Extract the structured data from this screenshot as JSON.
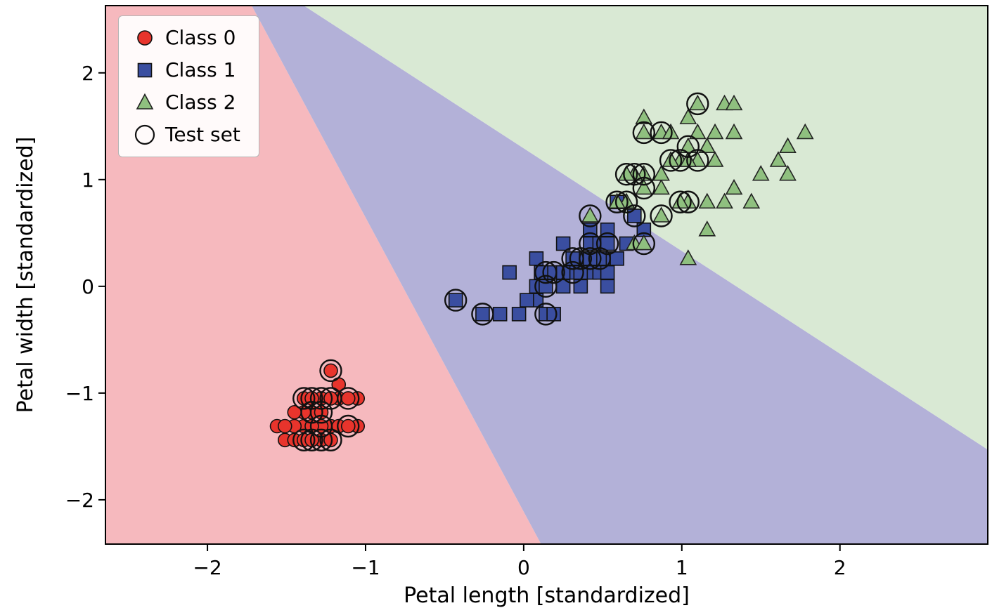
{
  "chart_data": {
    "type": "scatter",
    "title": "",
    "xlabel": "Petal length [standardized]",
    "ylabel": "Petal width [standardized]",
    "xlim": [
      -2.645,
      2.935
    ],
    "ylim": [
      -2.415,
      2.63
    ],
    "xticks": [
      -2,
      -1,
      0,
      1,
      2
    ],
    "yticks": [
      -2,
      -1,
      0,
      1,
      2
    ],
    "grid": false,
    "legend": {
      "position": "upper left",
      "items": [
        {
          "label": "Class 0",
          "marker": "circle",
          "fill": "#e8342c",
          "edge": "#111111"
        },
        {
          "label": "Class 1",
          "marker": "square",
          "fill": "#3a4ea0",
          "edge": "#111111"
        },
        {
          "label": "Class 2",
          "marker": "triangle",
          "fill": "#8fc07f",
          "edge": "#222222"
        },
        {
          "label": "Test set",
          "marker": "open-circle",
          "fill": "none",
          "edge": "#111111"
        }
      ]
    },
    "regions": [
      {
        "name": "class-0-region",
        "color": "#f6b9be",
        "points": [
          [
            -2.645,
            2.63
          ],
          [
            -1.72,
            2.63
          ],
          [
            0.11,
            -2.415
          ],
          [
            -2.645,
            -2.415
          ]
        ]
      },
      {
        "name": "class-1-region",
        "color": "#b3b1d8",
        "points": [
          [
            -1.72,
            2.63
          ],
          [
            -1.39,
            2.63
          ],
          [
            2.935,
            -1.53
          ],
          [
            2.935,
            -2.415
          ],
          [
            0.11,
            -2.415
          ]
        ]
      },
      {
        "name": "class-2-region",
        "color": "#d9e9d4",
        "points": [
          [
            -1.39,
            2.63
          ],
          [
            2.935,
            2.63
          ],
          [
            2.935,
            -1.53
          ]
        ]
      }
    ],
    "series": [
      {
        "name": "Class 0",
        "marker": "circle",
        "fill": "#e8342c",
        "edge": "#111111",
        "points": [
          [
            -1.34,
            -1.31,
            0
          ],
          [
            -1.39,
            -1.31,
            0
          ],
          [
            -1.28,
            -1.31,
            1
          ],
          [
            -1.17,
            -1.05,
            0
          ],
          [
            -1.34,
            -1.18,
            1
          ],
          [
            -1.22,
            -1.31,
            0
          ],
          [
            -1.51,
            -1.44,
            0
          ],
          [
            -1.45,
            -1.31,
            0
          ],
          [
            -1.28,
            -1.44,
            1
          ],
          [
            -1.39,
            -1.05,
            1
          ],
          [
            -1.34,
            -1.44,
            1
          ],
          [
            -1.17,
            -1.31,
            0
          ],
          [
            -1.28,
            -1.05,
            1
          ],
          [
            -1.56,
            -1.31,
            0
          ],
          [
            -1.17,
            -0.92,
            0
          ],
          [
            -1.05,
            -1.31,
            0
          ],
          [
            -1.22,
            -1.05,
            1
          ],
          [
            -1.22,
            -0.79,
            1
          ],
          [
            -1.05,
            -1.05,
            0
          ],
          [
            -1.39,
            -1.18,
            0
          ],
          [
            -1.45,
            -1.44,
            0
          ],
          [
            -1.39,
            -1.44,
            1
          ],
          [
            -1.34,
            -1.05,
            1
          ],
          [
            -1.28,
            -1.18,
            1
          ],
          [
            -1.45,
            -1.18,
            0
          ],
          [
            -1.51,
            -1.31,
            0
          ],
          [
            -1.28,
            -1.31,
            0
          ],
          [
            -1.22,
            -1.44,
            1
          ],
          [
            -1.34,
            -1.44,
            0
          ],
          [
            -1.11,
            -1.31,
            1
          ],
          [
            -1.11,
            -1.05,
            1
          ],
          [
            -1.34,
            -1.31,
            0
          ]
        ]
      },
      {
        "name": "Class 1",
        "marker": "square",
        "fill": "#3a4ea0",
        "edge": "#111111",
        "points": [
          [
            0.53,
            0.26,
            0
          ],
          [
            0.42,
            0.4,
            1
          ],
          [
            0.65,
            0.4,
            0
          ],
          [
            0.14,
            0.13,
            1
          ],
          [
            0.48,
            0.4,
            0
          ],
          [
            0.42,
            0.13,
            0
          ],
          [
            0.53,
            0.53,
            0
          ],
          [
            -0.26,
            -0.26,
            1
          ],
          [
            0.48,
            0.13,
            0
          ],
          [
            0.08,
            0.26,
            0
          ],
          [
            -0.15,
            -0.26,
            0
          ],
          [
            0.25,
            0.4,
            0
          ],
          [
            0.14,
            -0.26,
            1
          ],
          [
            -0.09,
            0.13,
            0
          ],
          [
            0.36,
            0.26,
            1
          ],
          [
            0.19,
            -0.26,
            0
          ],
          [
            0.08,
            -0.13,
            0
          ],
          [
            0.59,
            0.79,
            0
          ],
          [
            0.53,
            0.0,
            0
          ],
          [
            0.31,
            0.13,
            1
          ],
          [
            0.59,
            0.26,
            0
          ],
          [
            0.7,
            0.66,
            1
          ],
          [
            0.02,
            -0.13,
            0
          ],
          [
            -0.03,
            -0.26,
            0
          ],
          [
            0.08,
            0.0,
            0
          ],
          [
            0.76,
            0.53,
            0
          ],
          [
            0.42,
            0.53,
            0
          ],
          [
            0.53,
            0.4,
            1
          ],
          [
            0.36,
            0.13,
            0
          ],
          [
            0.19,
            0.13,
            1
          ],
          [
            0.36,
            0.0,
            0
          ],
          [
            0.48,
            0.26,
            1
          ],
          [
            0.14,
            0.0,
            1
          ],
          [
            0.25,
            0.13,
            0
          ],
          [
            0.25,
            0.0,
            0
          ],
          [
            -0.43,
            -0.13,
            1
          ],
          [
            0.11,
            0.13,
            0
          ],
          [
            0.42,
            0.26,
            1
          ],
          [
            0.31,
            0.26,
            1
          ],
          [
            0.53,
            0.13,
            0
          ]
        ]
      },
      {
        "name": "Class 2",
        "marker": "triangle",
        "fill": "#8fc07f",
        "edge": "#222222",
        "points": [
          [
            1.27,
            1.71,
            0
          ],
          [
            0.76,
            0.92,
            1
          ],
          [
            1.21,
            1.18,
            0
          ],
          [
            1.04,
            0.79,
            1
          ],
          [
            1.16,
            1.31,
            0
          ],
          [
            1.61,
            1.18,
            0
          ],
          [
            0.42,
            0.66,
            1
          ],
          [
            1.44,
            0.79,
            0
          ],
          [
            1.16,
            0.79,
            0
          ],
          [
            1.33,
            1.71,
            0
          ],
          [
            0.76,
            1.05,
            1
          ],
          [
            0.87,
            0.92,
            0
          ],
          [
            0.99,
            1.18,
            1
          ],
          [
            0.7,
            1.05,
            1
          ],
          [
            0.76,
            1.58,
            0
          ],
          [
            0.87,
            1.44,
            1
          ],
          [
            0.99,
            0.79,
            1
          ],
          [
            1.67,
            1.31,
            0
          ],
          [
            1.78,
            1.44,
            0
          ],
          [
            0.7,
            0.4,
            0
          ],
          [
            1.1,
            1.44,
            0
          ],
          [
            0.65,
            1.05,
            1
          ],
          [
            1.67,
            1.05,
            0
          ],
          [
            0.65,
            0.79,
            1
          ],
          [
            1.1,
            1.18,
            1
          ],
          [
            1.27,
            0.79,
            0
          ],
          [
            0.59,
            0.79,
            1
          ],
          [
            1.04,
            1.18,
            0
          ],
          [
            1.16,
            0.53,
            0
          ],
          [
            1.33,
            0.92,
            0
          ],
          [
            1.5,
            1.05,
            0
          ],
          [
            1.04,
            1.31,
            1
          ],
          [
            0.76,
            0.4,
            1
          ],
          [
            1.04,
            0.26,
            0
          ],
          [
            1.33,
            1.44,
            0
          ],
          [
            1.04,
            1.58,
            0
          ],
          [
            0.93,
            1.18,
            1
          ],
          [
            0.76,
            1.44,
            1
          ],
          [
            1.21,
            1.44,
            0
          ],
          [
            1.1,
            1.71,
            1
          ],
          [
            0.87,
            1.05,
            0
          ],
          [
            0.93,
            1.44,
            0
          ],
          [
            0.87,
            0.66,
            1
          ]
        ]
      }
    ],
    "test_ring": {
      "edge": "#111111",
      "label": "Test set"
    }
  }
}
